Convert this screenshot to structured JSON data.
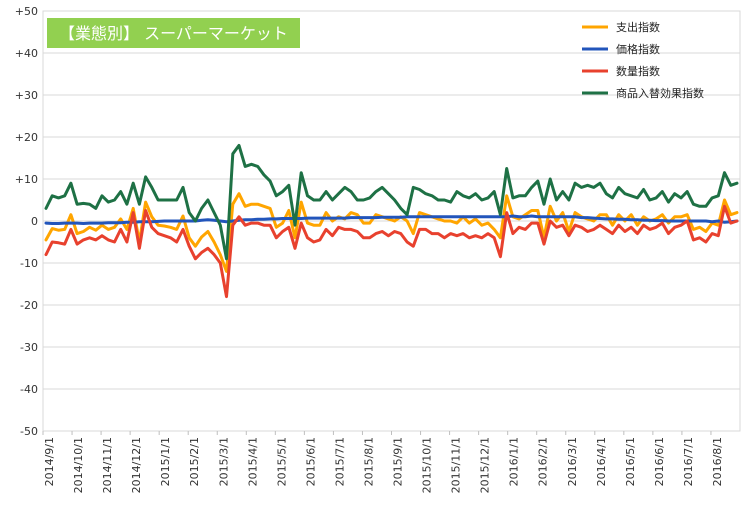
{
  "chart_data": {
    "type": "line",
    "title": "【業態別】 スーパーマーケット",
    "ylim": [
      -50,
      50
    ],
    "y_ticks": [
      "+50",
      "+40",
      "+30",
      "+20",
      "+10",
      "0",
      "-10",
      "-20",
      "-30",
      "-40",
      "-50"
    ],
    "x_ticks": [
      "2014/9/1",
      "2014/10/1",
      "2014/11/1",
      "2014/12/1",
      "2015/1/1",
      "2015/2/1",
      "2015/3/1",
      "2015/4/1",
      "2015/5/1",
      "2015/6/1",
      "2015/7/1",
      "2015/8/1",
      "2015/9/1",
      "2015/10/1",
      "2015/11/1",
      "2015/12/1",
      "2016/1/1",
      "2016/2/1",
      "2016/3/1",
      "2016/4/1",
      "2016/5/1",
      "2016/6/1",
      "2016/7/1",
      "2016/8/1"
    ],
    "legend_position": "top-right",
    "grid": true,
    "series": [
      {
        "name": "支出指数",
        "color": "#FFA500",
        "values": [
          -4.5,
          -1.8,
          -2.2,
          -2.0,
          1.5,
          -3.0,
          -2.5,
          -1.5,
          -2.2,
          -1.0,
          -2.0,
          -1.5,
          0.5,
          -2.0,
          3.0,
          -5.0,
          4.5,
          1.0,
          -1.0,
          -1.2,
          -1.5,
          -2.0,
          1.2,
          -4.0,
          -6.0,
          -3.8,
          -2.5,
          -5.0,
          -8.0,
          -12.0,
          4.0,
          6.5,
          3.5,
          4.0,
          4.0,
          3.5,
          3.0,
          -1.5,
          -0.5,
          2.5,
          -4.0,
          4.5,
          -0.5,
          -1.0,
          -1.0,
          2.0,
          0.0,
          1.0,
          0.5,
          2.0,
          1.5,
          -0.5,
          -0.5,
          1.5,
          1.0,
          0.5,
          0.0,
          1.0,
          0.0,
          -3.0,
          2.0,
          1.5,
          1.0,
          0.5,
          0.0,
          0.0,
          -0.5,
          1.0,
          -0.5,
          0.5,
          -1.0,
          -0.5,
          -2.0,
          -4.0,
          6.0,
          1.0,
          0.5,
          1.5,
          2.5,
          2.5,
          -4.0,
          3.5,
          0.0,
          2.0,
          -2.5,
          2.0,
          1.0,
          0.5,
          0.0,
          1.5,
          1.5,
          -1.0,
          1.5,
          0.0,
          1.5,
          -1.0,
          1.0,
          0.0,
          0.5,
          1.5,
          -0.5,
          1.0,
          1.0,
          1.5,
          -2.0,
          -1.5,
          -2.5,
          -0.5,
          -1.0,
          5.0,
          1.5,
          2.0
        ]
      },
      {
        "name": "価格指数",
        "color": "#2255BB",
        "values": [
          -0.5,
          -0.6,
          -0.6,
          -0.5,
          -0.5,
          -0.5,
          -0.6,
          -0.5,
          -0.5,
          -0.5,
          -0.4,
          -0.4,
          -0.4,
          -0.3,
          -0.3,
          -0.2,
          -0.2,
          -0.2,
          -0.1,
          0.0,
          0.0,
          0.0,
          0.0,
          0.0,
          0.0,
          0.2,
          0.3,
          0.2,
          0.0,
          -0.2,
          0.0,
          0.2,
          0.3,
          0.3,
          0.4,
          0.4,
          0.5,
          0.5,
          0.6,
          0.6,
          0.6,
          0.6,
          0.7,
          0.7,
          0.7,
          0.7,
          0.7,
          0.7,
          0.7,
          0.8,
          0.8,
          0.8,
          0.8,
          0.8,
          0.9,
          0.9,
          0.9,
          0.9,
          1.0,
          1.0,
          1.0,
          1.0,
          1.0,
          1.0,
          1.0,
          1.0,
          1.0,
          1.0,
          1.0,
          1.0,
          1.0,
          1.0,
          1.0,
          1.0,
          1.0,
          1.2,
          1.0,
          1.0,
          1.2,
          1.0,
          1.0,
          1.0,
          1.0,
          1.0,
          1.0,
          1.0,
          0.8,
          0.8,
          0.7,
          0.6,
          0.5,
          0.5,
          0.4,
          0.4,
          0.3,
          0.3,
          0.2,
          0.2,
          0.1,
          0.1,
          0.0,
          0.0,
          0.0,
          0.0,
          0.0,
          0.0,
          0.0,
          -0.2,
          0.0,
          -0.3,
          -0.2,
          0.0
        ]
      },
      {
        "name": "数量指数",
        "color": "#E8412E",
        "values": [
          -8.0,
          -5.0,
          -5.2,
          -5.5,
          -2.0,
          -5.5,
          -4.5,
          -4.0,
          -4.5,
          -3.5,
          -4.5,
          -5.0,
          -2.0,
          -5.0,
          2.0,
          -6.5,
          2.5,
          -1.5,
          -3.0,
          -3.5,
          -4.0,
          -5.0,
          -2.0,
          -6.0,
          -9.0,
          -7.5,
          -6.5,
          -8.0,
          -10.0,
          -18.0,
          -1.0,
          1.0,
          -1.0,
          -0.5,
          -0.5,
          -1.0,
          -1.0,
          -4.0,
          -2.5,
          -1.5,
          -6.5,
          -0.5,
          -4.0,
          -5.0,
          -4.5,
          -2.0,
          -3.5,
          -1.5,
          -2.0,
          -2.0,
          -2.5,
          -4.0,
          -4.0,
          -3.0,
          -2.5,
          -3.5,
          -2.5,
          -3.0,
          -5.0,
          -6.0,
          -2.0,
          -2.0,
          -3.0,
          -3.0,
          -4.0,
          -3.0,
          -3.5,
          -3.0,
          -4.0,
          -3.5,
          -4.0,
          -3.0,
          -4.0,
          -8.5,
          2.0,
          -3.0,
          -1.5,
          -2.0,
          -0.5,
          -0.5,
          -5.5,
          0.0,
          -1.5,
          -1.0,
          -3.5,
          -1.0,
          -1.5,
          -2.5,
          -2.0,
          -1.0,
          -2.0,
          -3.0,
          -1.0,
          -2.5,
          -1.5,
          -3.0,
          -1.0,
          -2.0,
          -1.5,
          -0.5,
          -3.0,
          -1.5,
          -1.0,
          0.0,
          -4.5,
          -4.0,
          -5.0,
          -3.0,
          -3.5,
          3.5,
          -0.5,
          0.0
        ]
      },
      {
        "name": "商品入替効果指数",
        "color": "#1E7145",
        "values": [
          3.0,
          6.0,
          5.5,
          6.0,
          9.0,
          4.0,
          4.2,
          4.0,
          3.0,
          6.0,
          4.5,
          5.0,
          7.0,
          4.0,
          9.0,
          4.0,
          10.5,
          8.0,
          5.0,
          5.0,
          5.0,
          5.0,
          8.0,
          2.0,
          0.0,
          3.0,
          5.0,
          2.0,
          -1.0,
          -9.0,
          16.0,
          18.0,
          13.0,
          13.5,
          13.0,
          11.0,
          9.5,
          6.0,
          7.0,
          8.5,
          -1.0,
          11.5,
          6.0,
          5.0,
          5.0,
          7.0,
          5.0,
          6.5,
          8.0,
          7.0,
          5.0,
          5.0,
          5.5,
          7.0,
          8.0,
          6.5,
          5.0,
          3.0,
          1.5,
          8.0,
          7.5,
          6.5,
          6.0,
          5.0,
          5.0,
          4.5,
          7.0,
          6.0,
          5.5,
          6.5,
          5.0,
          5.5,
          7.0,
          1.5,
          12.5,
          5.5,
          6.0,
          6.0,
          8.0,
          9.5,
          4.0,
          10.0,
          5.0,
          7.0,
          5.0,
          9.0,
          8.0,
          8.5,
          8.0,
          9.0,
          6.5,
          5.5,
          8.0,
          6.5,
          6.0,
          5.5,
          7.5,
          5.0,
          5.5,
          7.0,
          4.5,
          6.5,
          5.5,
          7.0,
          4.0,
          3.5,
          3.5,
          5.5,
          6.0,
          11.5,
          8.5,
          9.0
        ]
      }
    ]
  }
}
